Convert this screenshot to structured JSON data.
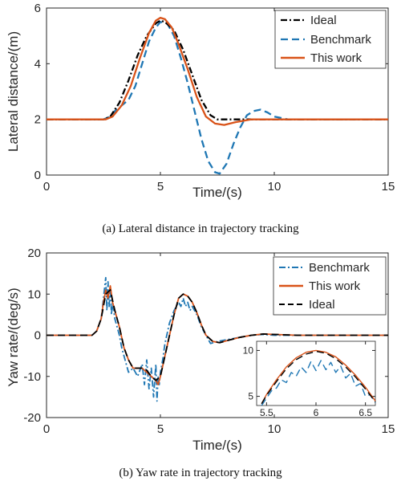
{
  "chart_data": [
    {
      "type": "line",
      "caption": "(a) Lateral distance in trajectory tracking",
      "xlabel": "Time/(s)",
      "ylabel": "Lateral distance/(m)",
      "xlim": [
        0,
        15
      ],
      "ylim": [
        0,
        6
      ],
      "xticks": [
        0,
        5,
        10,
        15
      ],
      "yticks": [
        0,
        2,
        4,
        6
      ],
      "legend_position": "top-right",
      "series": [
        {
          "name": "Ideal",
          "color": "#000000",
          "dash": "dashdot",
          "x": [
            0,
            2.5,
            2.8,
            3.2,
            3.6,
            4.0,
            4.4,
            4.8,
            5.0,
            5.2,
            5.6,
            6.0,
            6.4,
            6.8,
            7.2,
            7.5,
            8.0,
            9.0,
            15
          ],
          "y": [
            2.0,
            2.0,
            2.1,
            2.6,
            3.4,
            4.3,
            5.0,
            5.45,
            5.55,
            5.5,
            5.2,
            4.5,
            3.6,
            2.7,
            2.15,
            2.0,
            2.0,
            2.0,
            2.0
          ]
        },
        {
          "name": "Benchmark",
          "color": "#1f77b4",
          "dash": "dashed",
          "x": [
            0,
            2.5,
            2.8,
            3.0,
            3.3,
            3.6,
            3.9,
            4.2,
            4.5,
            4.8,
            5.0,
            5.3,
            5.6,
            5.9,
            6.2,
            6.5,
            6.8,
            7.1,
            7.4,
            7.6,
            7.9,
            8.2,
            8.5,
            8.8,
            9.1,
            9.4,
            9.7,
            10.0,
            10.3,
            10.6,
            11.0,
            15
          ],
          "y": [
            2.0,
            2.0,
            2.1,
            2.3,
            2.5,
            2.7,
            3.2,
            4.0,
            4.8,
            5.3,
            5.5,
            5.45,
            5.0,
            4.2,
            3.3,
            2.3,
            1.3,
            0.5,
            0.1,
            0.05,
            0.4,
            1.1,
            1.7,
            2.15,
            2.3,
            2.35,
            2.25,
            2.1,
            2.05,
            2.0,
            2.0,
            2.0
          ]
        },
        {
          "name": "This work",
          "color": "#d95319",
          "dash": "solid",
          "x": [
            0,
            2.6,
            2.9,
            3.3,
            3.7,
            4.1,
            4.5,
            4.8,
            5.0,
            5.2,
            5.5,
            5.8,
            6.2,
            6.6,
            7.0,
            7.4,
            7.8,
            8.3,
            9.0,
            10.0,
            15
          ],
          "y": [
            2.0,
            2.0,
            2.1,
            2.5,
            3.2,
            4.2,
            5.1,
            5.55,
            5.65,
            5.6,
            5.3,
            4.7,
            3.8,
            2.8,
            2.1,
            1.85,
            1.8,
            1.9,
            2.0,
            2.0,
            2.0
          ]
        }
      ]
    },
    {
      "type": "line",
      "caption": "(b) Yaw rate in trajectory tracking",
      "xlabel": "Time/(s)",
      "ylabel": "Yaw rate/(deg/s)",
      "xlim": [
        0,
        15
      ],
      "ylim": [
        -20,
        20
      ],
      "xticks": [
        0,
        5,
        10,
        15
      ],
      "yticks": [
        -20,
        -10,
        0,
        10,
        20
      ],
      "legend_position": "top-right",
      "series": [
        {
          "name": "Benchmark",
          "color": "#1f77b4",
          "dash": "dashdot",
          "x": [
            0,
            2.0,
            2.2,
            2.4,
            2.5,
            2.6,
            2.65,
            2.7,
            2.75,
            2.8,
            2.85,
            2.9,
            3.0,
            3.1,
            3.2,
            3.3,
            3.4,
            3.6,
            3.8,
            4.0,
            4.2,
            4.3,
            4.4,
            4.5,
            4.6,
            4.7,
            4.8,
            4.85,
            4.9,
            4.95,
            5.0,
            5.1,
            5.2,
            5.4,
            5.6,
            5.8,
            5.9,
            6.0,
            6.1,
            6.2,
            6.3,
            6.4,
            6.6,
            6.8,
            7.0,
            7.2,
            7.5,
            8.0,
            8.5,
            9.0,
            9.5,
            10.0,
            11.0,
            15
          ],
          "y": [
            0,
            0,
            1,
            4,
            9,
            14,
            6,
            13,
            7,
            12,
            5,
            8,
            4,
            2,
            0,
            -3,
            -5,
            -9,
            -8,
            -10,
            -7,
            -12,
            -6,
            -13,
            -8,
            -15,
            -7,
            -16,
            -10,
            -12,
            -9,
            -6,
            -2,
            3,
            6,
            8,
            7,
            9,
            7,
            8,
            6,
            7,
            5,
            2,
            0,
            -2,
            -1.5,
            -1,
            -0.5,
            0,
            0.2,
            0,
            0,
            0
          ]
        },
        {
          "name": "This work",
          "color": "#d95319",
          "dash": "solid",
          "x": [
            0,
            2.0,
            2.2,
            2.4,
            2.5,
            2.6,
            2.7,
            2.8,
            2.9,
            3.0,
            3.2,
            3.4,
            3.6,
            3.8,
            4.0,
            4.2,
            4.4,
            4.6,
            4.8,
            4.9,
            5.0,
            5.2,
            5.4,
            5.6,
            5.8,
            6.0,
            6.2,
            6.4,
            6.6,
            6.8,
            7.0,
            7.3,
            7.6,
            8.0,
            8.5,
            9.0,
            9.5,
            10.0,
            11.0,
            15
          ],
          "y": [
            0,
            0,
            1,
            4,
            8,
            11,
            9,
            12,
            8,
            6,
            2,
            -3,
            -6,
            -8,
            -8,
            -8,
            -9,
            -10,
            -11,
            -12,
            -10,
            -5,
            0,
            5,
            9,
            10,
            9.5,
            8,
            5.5,
            2.5,
            0,
            -1.5,
            -1.8,
            -1.2,
            -0.5,
            0,
            0.3,
            0.2,
            0,
            0
          ]
        },
        {
          "name": "Ideal",
          "color": "#000000",
          "dash": "dashed",
          "x": [
            0,
            2.0,
            2.2,
            2.4,
            2.6,
            2.8,
            3.0,
            3.2,
            3.4,
            3.6,
            3.8,
            4.0,
            4.2,
            4.4,
            4.6,
            4.8,
            5.0,
            5.2,
            5.4,
            5.6,
            5.8,
            6.0,
            6.2,
            6.4,
            6.6,
            6.8,
            7.0,
            7.3,
            7.6,
            8.0,
            8.5,
            9.0,
            9.5,
            10.0,
            11.0,
            15
          ],
          "y": [
            0,
            0,
            1,
            4,
            10,
            11,
            6,
            2,
            -3,
            -6,
            -8,
            -8,
            -8,
            -8.5,
            -10,
            -11,
            -10,
            -5,
            0,
            5,
            9,
            10,
            9.5,
            8,
            5.5,
            2.5,
            0,
            -1.5,
            -1.8,
            -1.2,
            -0.5,
            0,
            0.3,
            0.2,
            0,
            0
          ]
        }
      ],
      "inset": {
        "xlim": [
          5.4,
          6.6
        ],
        "ylim": [
          4,
          11
        ],
        "xticks": [
          5.5,
          6,
          6.5
        ],
        "yticks": [
          5,
          10
        ],
        "series": [
          {
            "name": "Benchmark",
            "color": "#1f77b4",
            "dash": "dashed",
            "x": [
              5.45,
              5.5,
              5.55,
              5.6,
              5.65,
              5.7,
              5.75,
              5.8,
              5.85,
              5.9,
              5.95,
              6.0,
              6.05,
              6.1,
              6.15,
              6.2,
              6.25,
              6.3,
              6.35,
              6.4,
              6.45,
              6.5,
              6.55,
              6.6
            ],
            "y": [
              4.0,
              4.8,
              5.6,
              5.9,
              6.8,
              6.5,
              7.6,
              7.2,
              8.2,
              7.6,
              8.8,
              7.8,
              8.9,
              7.9,
              8.7,
              7.6,
              8.3,
              7.0,
              7.5,
              6.1,
              6.4,
              5.0,
              5.2,
              4.3
            ]
          },
          {
            "name": "This work",
            "color": "#d95319",
            "dash": "solid",
            "x": [
              5.45,
              5.5,
              5.6,
              5.7,
              5.8,
              5.9,
              6.0,
              6.1,
              6.2,
              6.3,
              6.4,
              6.5,
              6.6
            ],
            "y": [
              4.2,
              5.2,
              6.8,
              8.2,
              9.2,
              9.8,
              10.0,
              9.8,
              9.3,
              8.4,
              7.3,
              6.0,
              4.5
            ]
          },
          {
            "name": "Ideal",
            "color": "#000000",
            "dash": "dashed",
            "x": [
              5.45,
              5.5,
              5.6,
              5.7,
              5.8,
              5.9,
              6.0,
              6.1,
              6.2,
              6.3,
              6.4,
              6.5,
              6.6
            ],
            "y": [
              4.2,
              5.1,
              6.6,
              8.0,
              9.0,
              9.6,
              9.9,
              9.7,
              9.1,
              8.2,
              7.1,
              5.8,
              4.4
            ]
          }
        ]
      }
    }
  ]
}
